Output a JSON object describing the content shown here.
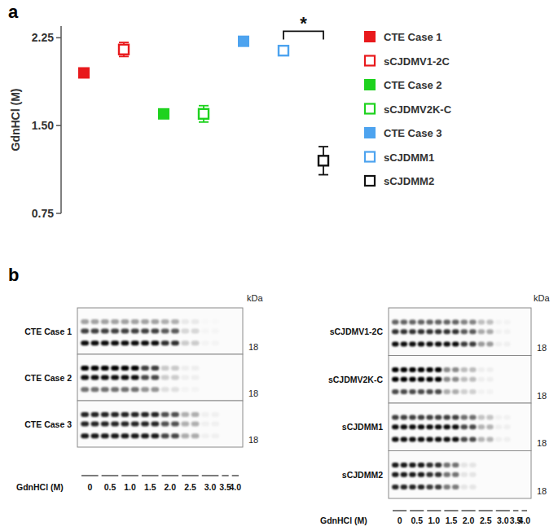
{
  "panel_labels": [
    "a",
    "b"
  ],
  "chart_data": {
    "type": "scatter",
    "y_label": "GdnHCl (M)",
    "categories": [
      null,
      null,
      null,
      null,
      null,
      null,
      null
    ],
    "ylim": [
      0.75,
      2.35
    ],
    "yticks": [
      0.75,
      {
        "value": 1.5,
        "label": "1.50"
      },
      2.25
    ],
    "tick_labels": "y",
    "grid": false,
    "legend": "right",
    "significance": {
      "text": "*",
      "pair": [
        "sCJDMM1",
        "sCJDMM2"
      ]
    },
    "series": [
      {
        "name": "CTE Case 1",
        "color": "#e8191c",
        "marker": "filled-square",
        "values": [
          1.95,
          null,
          null,
          null,
          null,
          null,
          null
        ],
        "errors": [
          null,
          null,
          null,
          null,
          null,
          null,
          null
        ]
      },
      {
        "name": "sCJDMV1-2C",
        "color": "#e8191c",
        "marker": "open-square",
        "values": [
          null,
          2.15,
          null,
          null,
          null,
          null,
          null
        ],
        "errors": [
          null,
          0.06,
          null,
          null,
          null,
          null,
          null
        ]
      },
      {
        "name": "CTE Case 2",
        "color": "#1ed21e",
        "marker": "filled-square",
        "values": [
          null,
          null,
          1.6,
          null,
          null,
          null,
          null
        ],
        "errors": [
          null,
          null,
          null,
          null,
          null,
          null,
          null
        ]
      },
      {
        "name": "sCJDMV2K-C",
        "color": "#1ed21e",
        "marker": "open-square",
        "values": [
          null,
          null,
          null,
          1.6,
          null,
          null,
          null
        ],
        "errors": [
          null,
          null,
          null,
          0.07,
          null,
          null,
          null
        ]
      },
      {
        "name": "CTE Case 3",
        "color": "#4da3ef",
        "marker": "filled-square",
        "values": [
          null,
          null,
          null,
          null,
          2.22,
          null,
          null
        ],
        "errors": [
          null,
          null,
          null,
          null,
          null,
          null,
          null
        ]
      },
      {
        "name": "sCJDMM1",
        "color": "#4da3ef",
        "marker": "open-square",
        "values": [
          null,
          null,
          null,
          null,
          null,
          2.14,
          null
        ],
        "errors": [
          null,
          null,
          null,
          null,
          null,
          0.04,
          null
        ]
      },
      {
        "name": "sCJDMM2",
        "color": "#111111",
        "marker": "open-square",
        "values": [
          null,
          null,
          null,
          null,
          null,
          null,
          1.2
        ],
        "errors": [
          null,
          null,
          null,
          null,
          null,
          null,
          0.12
        ]
      }
    ]
  },
  "blots": {
    "kda_label": "kDa",
    "marker_label": "18",
    "axis_label": "GdnHCl (M)",
    "concentrations": [
      0,
      0.5,
      {
        "value": 1,
        "label": "1.0"
      },
      1.5,
      {
        "value": 2,
        "label": "2.0"
      },
      2.5,
      {
        "value": 3,
        "label": "3.0"
      },
      3.5,
      {
        "value": 4,
        "label": "4.0"
      }
    ],
    "columns": [
      [
        {
          "name": "CTE Case 1",
          "signal": [
            1,
            1,
            1,
            1,
            0.85,
            0.2,
            0.03,
            0,
            0
          ],
          "glycoforms": [
            0.35,
            0.75,
            0.95
          ]
        },
        {
          "name": "CTE Case 2",
          "signal": [
            1,
            1,
            1,
            0.75,
            0.2,
            0.05,
            0,
            0,
            0
          ],
          "glycoforms": [
            1,
            0.95,
            0.55
          ]
        },
        {
          "name": "CTE Case 3",
          "signal": [
            1,
            1,
            1,
            1,
            0.8,
            0.35,
            0.05,
            0,
            0
          ],
          "glycoforms": [
            0.85,
            0.85,
            0.9
          ]
        }
      ],
      [
        {
          "name": "sCJDMV1-2C",
          "signal": [
            1,
            1,
            1,
            1,
            0.8,
            0.4,
            0.05,
            0,
            0
          ],
          "glycoforms": [
            0.6,
            0.8,
            0.95
          ]
        },
        {
          "name": "sCJDMV2K-C",
          "signal": [
            1,
            1,
            1,
            0.45,
            0.25,
            0.05,
            0,
            0,
            0
          ],
          "glycoforms": [
            1,
            1,
            0.7
          ]
        },
        {
          "name": "sCJDMM1",
          "signal": [
            1,
            1,
            1,
            1,
            0.75,
            0.3,
            0.05,
            0,
            0
          ],
          "glycoforms": [
            0.75,
            0.95,
            0.95
          ]
        },
        {
          "name": "sCJDMM2",
          "signal": [
            1,
            1,
            0.9,
            0.6,
            0.1,
            0,
            0,
            0,
            0
          ],
          "glycoforms": [
            0.9,
            0.9,
            0.85
          ]
        }
      ]
    ]
  }
}
